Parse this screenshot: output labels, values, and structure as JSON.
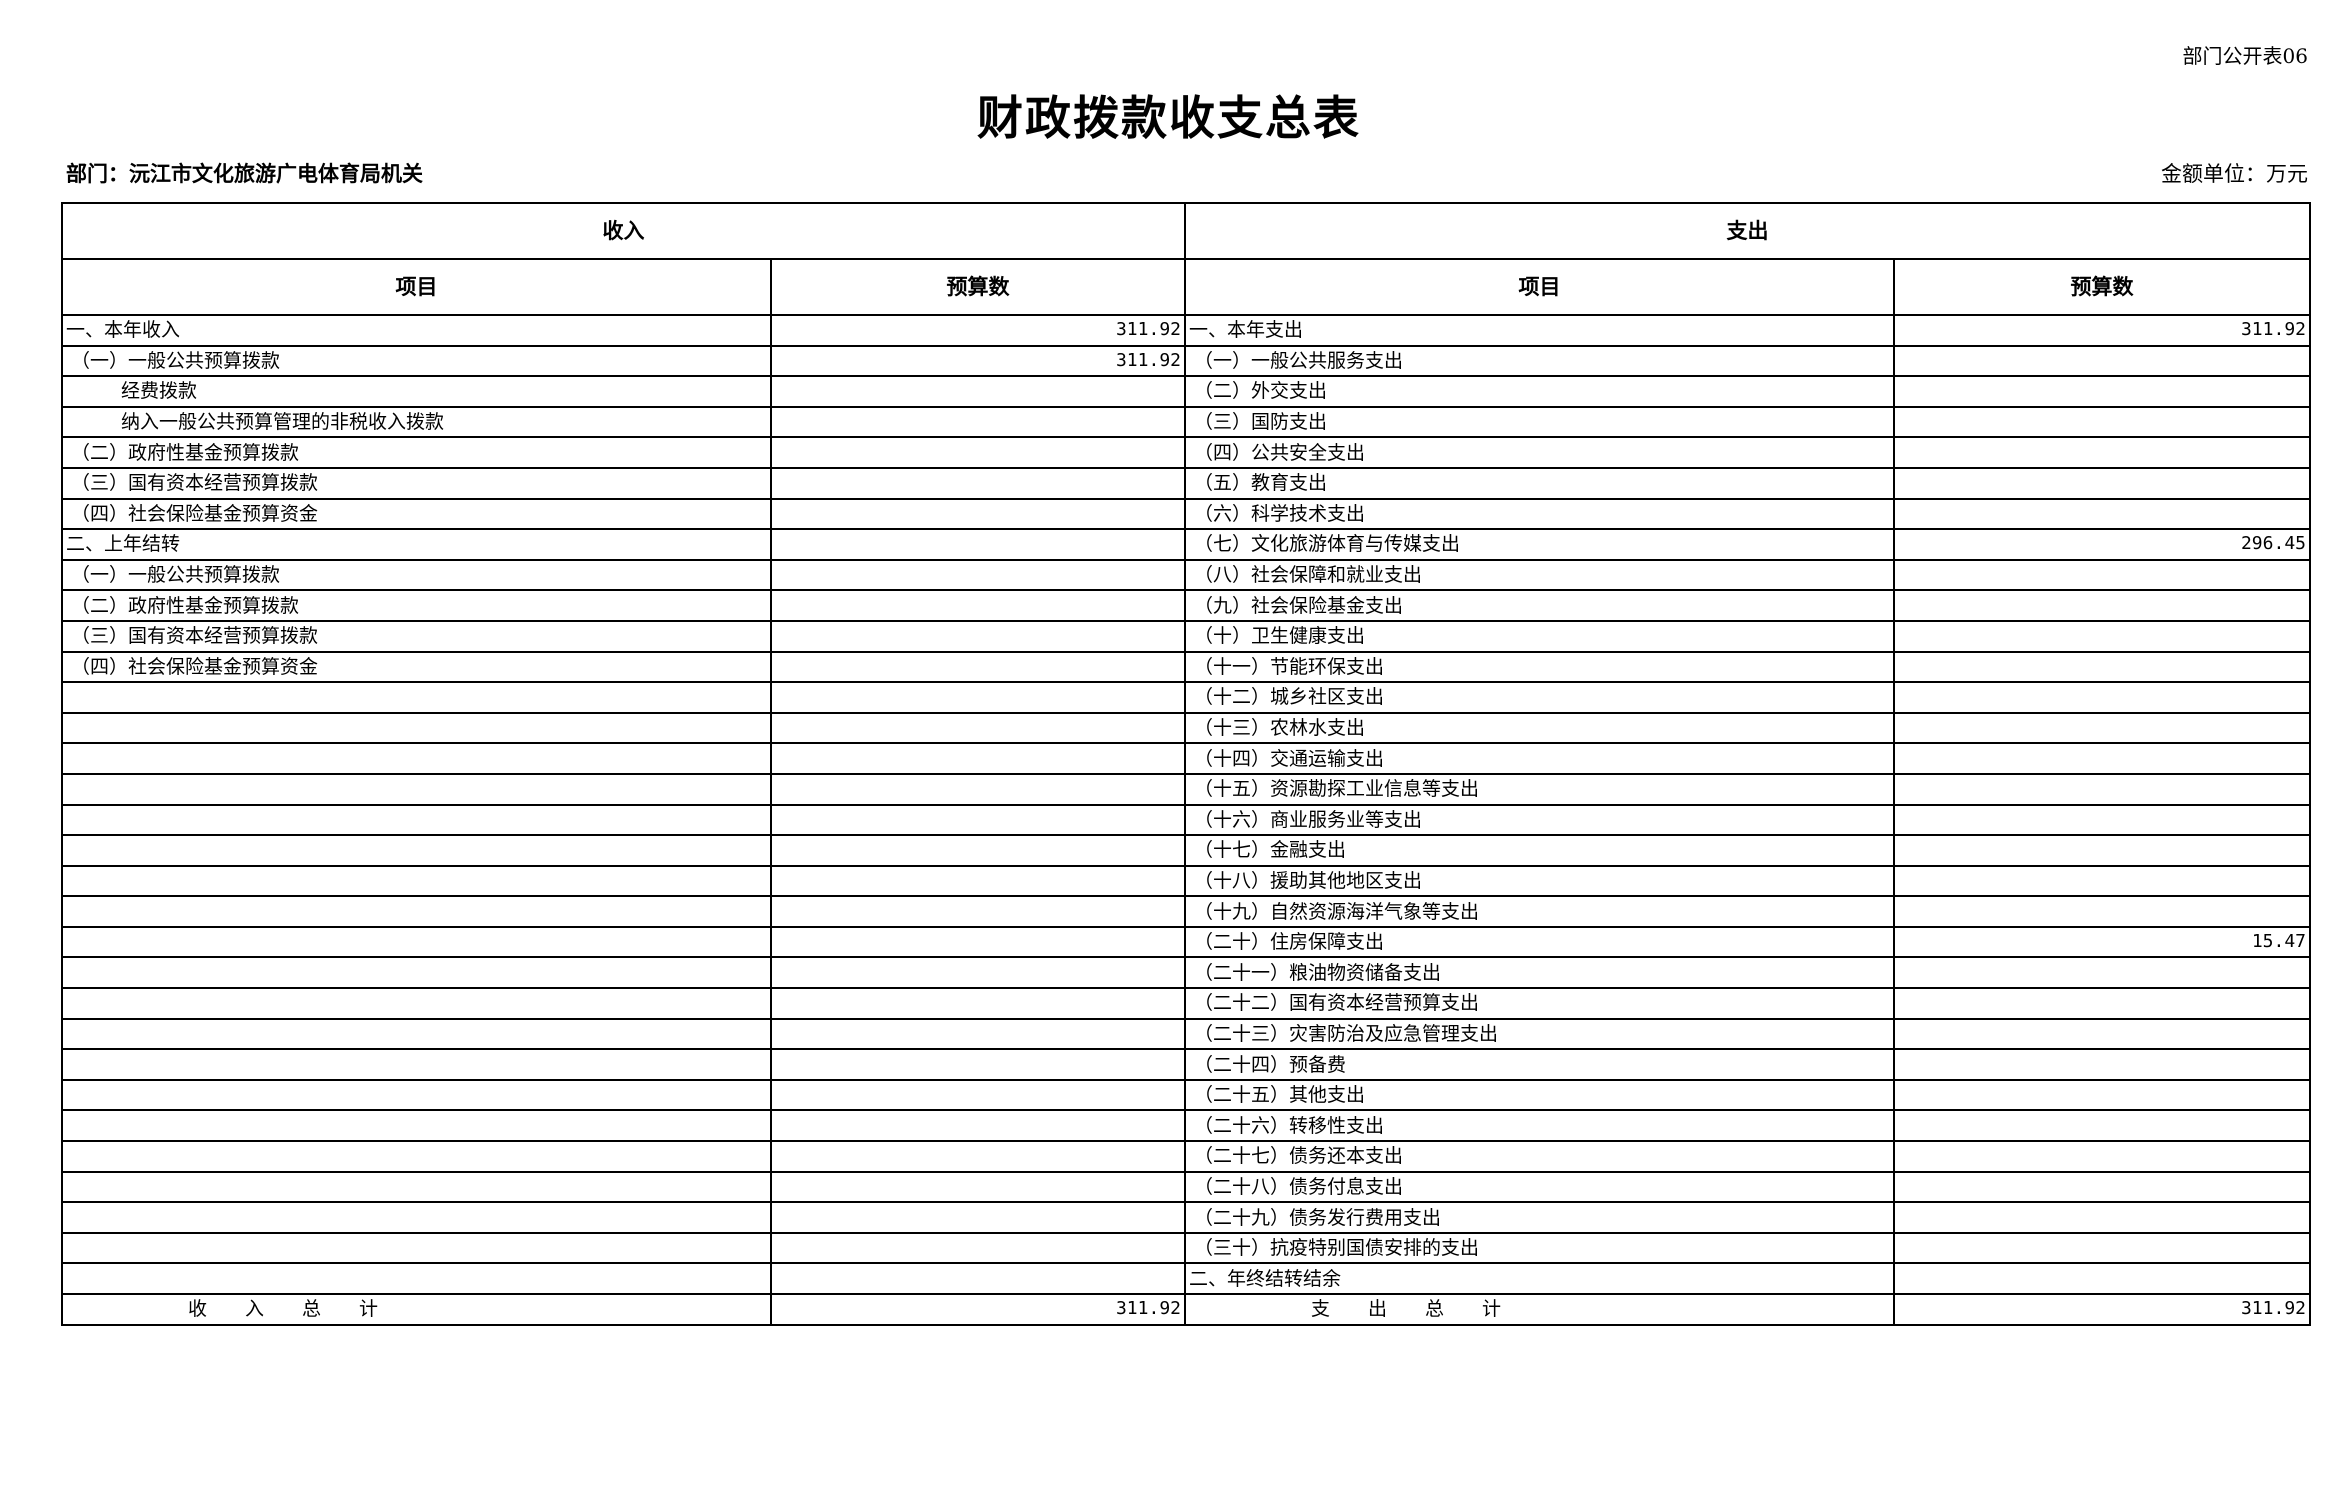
{
  "form_no": "部门公开表06",
  "title": "财政拨款收支总表",
  "department": "部门：沅江市文化旅游广电体育局机关",
  "unit": "金额单位：万元",
  "headers": {
    "income": "收入",
    "expense": "支出",
    "item": "项目",
    "budget": "预算数"
  },
  "income_rows": [
    {
      "label": "一、本年收入",
      "value": "311.92",
      "indent": 0
    },
    {
      "label": "（一）一般公共预算拨款",
      "value": "311.92",
      "indent": 1
    },
    {
      "label": "经费拨款",
      "value": "",
      "indent": 2
    },
    {
      "label": "纳入一般公共预算管理的非税收入拨款",
      "value": "",
      "indent": 2
    },
    {
      "label": "（二）政府性基金预算拨款",
      "value": "",
      "indent": 1
    },
    {
      "label": "（三）国有资本经营预算拨款",
      "value": "",
      "indent": 1
    },
    {
      "label": "（四）社会保险基金预算资金",
      "value": "",
      "indent": 1
    },
    {
      "label": "二、上年结转",
      "value": "",
      "indent": 0
    },
    {
      "label": "（一）一般公共预算拨款",
      "value": "",
      "indent": 1
    },
    {
      "label": "（二）政府性基金预算拨款",
      "value": "",
      "indent": 1
    },
    {
      "label": "（三）国有资本经营预算拨款",
      "value": "",
      "indent": 1
    },
    {
      "label": "（四）社会保险基金预算资金",
      "value": "",
      "indent": 1
    }
  ],
  "expense_rows": [
    {
      "label": "一、本年支出",
      "value": "311.92",
      "indent": 0
    },
    {
      "label": "（一）一般公共服务支出",
      "value": "",
      "indent": 1
    },
    {
      "label": "（二）外交支出",
      "value": "",
      "indent": 1
    },
    {
      "label": "（三）国防支出",
      "value": "",
      "indent": 1
    },
    {
      "label": "（四）公共安全支出",
      "value": "",
      "indent": 1
    },
    {
      "label": "（五）教育支出",
      "value": "",
      "indent": 1
    },
    {
      "label": "（六）科学技术支出",
      "value": "",
      "indent": 1
    },
    {
      "label": "（七）文化旅游体育与传媒支出",
      "value": "296.45",
      "indent": 1
    },
    {
      "label": "（八）社会保障和就业支出",
      "value": "",
      "indent": 1
    },
    {
      "label": "（九）社会保险基金支出",
      "value": "",
      "indent": 1
    },
    {
      "label": "（十）卫生健康支出",
      "value": "",
      "indent": 1
    },
    {
      "label": "（十一）节能环保支出",
      "value": "",
      "indent": 1
    },
    {
      "label": "（十二）城乡社区支出",
      "value": "",
      "indent": 1
    },
    {
      "label": "（十三）农林水支出",
      "value": "",
      "indent": 1
    },
    {
      "label": "（十四）交通运输支出",
      "value": "",
      "indent": 1
    },
    {
      "label": "（十五）资源勘探工业信息等支出",
      "value": "",
      "indent": 1
    },
    {
      "label": "（十六）商业服务业等支出",
      "value": "",
      "indent": 1
    },
    {
      "label": "（十七）金融支出",
      "value": "",
      "indent": 1
    },
    {
      "label": "（十八）援助其他地区支出",
      "value": "",
      "indent": 1
    },
    {
      "label": "（十九）自然资源海洋气象等支出",
      "value": "",
      "indent": 1
    },
    {
      "label": "（二十）住房保障支出",
      "value": "15.47",
      "indent": 1
    },
    {
      "label": "（二十一）粮油物资储备支出",
      "value": "",
      "indent": 1
    },
    {
      "label": "（二十二）国有资本经营预算支出",
      "value": "",
      "indent": 1
    },
    {
      "label": "（二十三）灾害防治及应急管理支出",
      "value": "",
      "indent": 1
    },
    {
      "label": "（二十四）预备费",
      "value": "",
      "indent": 1
    },
    {
      "label": "（二十五）其他支出",
      "value": "",
      "indent": 1
    },
    {
      "label": "（二十六）转移性支出",
      "value": "",
      "indent": 1
    },
    {
      "label": "（二十七）债务还本支出",
      "value": "",
      "indent": 1
    },
    {
      "label": "（二十八）债务付息支出",
      "value": "",
      "indent": 1
    },
    {
      "label": "（二十九）债务发行费用支出",
      "value": "",
      "indent": 1
    },
    {
      "label": "（三十）抗疫特别国债安排的支出",
      "value": "",
      "indent": 1
    },
    {
      "label": "二、年终结转结余",
      "value": "",
      "indent": 0
    }
  ],
  "totals": {
    "income_label": "收　　入　　总　　计",
    "income_value": "311.92",
    "expense_label": "支　　出　　总　　计",
    "expense_value": "311.92"
  }
}
